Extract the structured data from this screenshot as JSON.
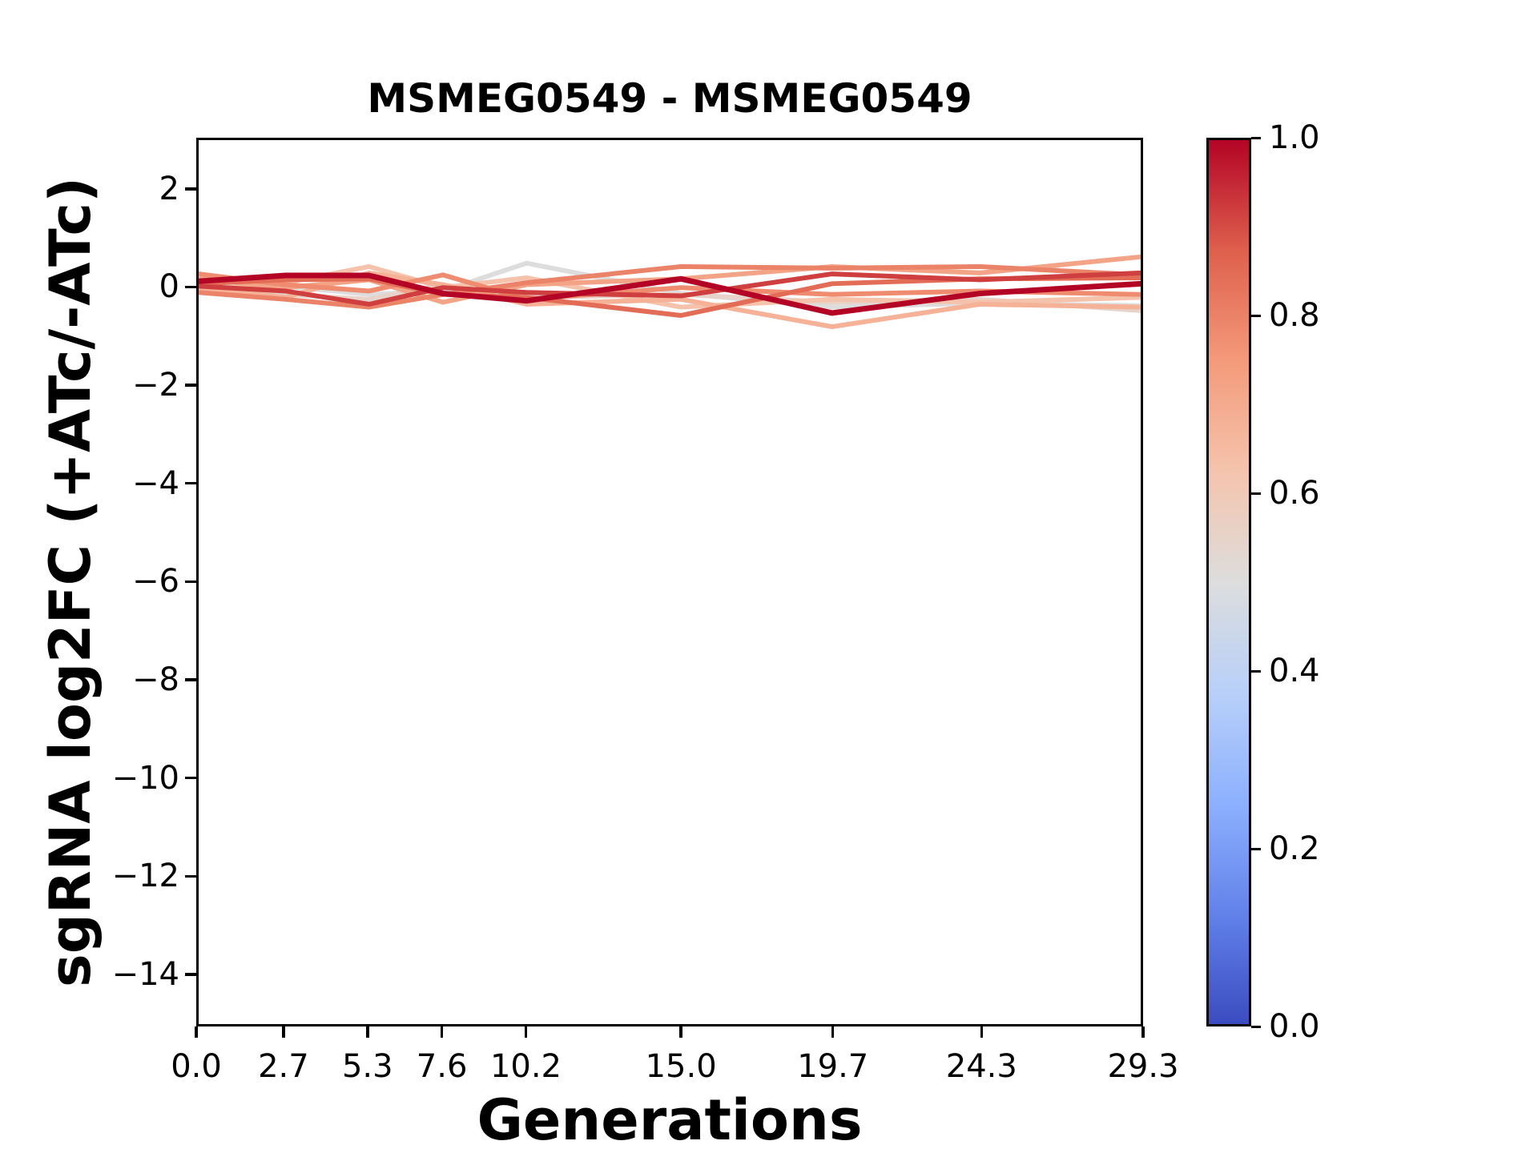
{
  "figure": {
    "background": "#ffffff"
  },
  "chart_data": {
    "type": "line",
    "title": "MSMEG0549 - MSMEG0549",
    "xlabel": "Generations",
    "ylabel": "sgRNA log2FC (+ATc/-ATc)",
    "x": [
      0.0,
      2.7,
      5.3,
      7.6,
      10.2,
      15.0,
      19.7,
      24.3,
      29.3
    ],
    "xtick_labels": [
      "0.0",
      "2.7",
      "5.3",
      "7.6",
      "10.2",
      "15.0",
      "19.7",
      "24.3",
      "29.3"
    ],
    "ytick_values": [
      2,
      0,
      -2,
      -4,
      -6,
      -8,
      -10,
      -12,
      -14
    ],
    "ytick_labels": [
      "2",
      "0",
      "−2",
      "−4",
      "−6",
      "−8",
      "−10",
      "−12",
      "−14"
    ],
    "xlim": [
      0.0,
      29.3
    ],
    "ylim": [
      -15.06,
      3.04
    ],
    "grid": false,
    "legend": "none",
    "colormap": "coolwarm",
    "series": [
      {
        "color_value": 0.5,
        "color": "#dddddd",
        "stroke_width": 6,
        "values": [
          0.0,
          0.05,
          -0.12,
          -0.05,
          0.52,
          -0.1,
          -0.38,
          -0.3,
          -0.35
        ]
      },
      {
        "color_value": 0.55,
        "color": "#e7d3ca",
        "stroke_width": 6,
        "values": [
          0.12,
          -0.12,
          -0.22,
          0.08,
          -0.18,
          -0.12,
          -0.28,
          -0.22,
          -0.45
        ]
      },
      {
        "color_value": 0.63,
        "color": "#f5c2ab",
        "stroke_width": 6,
        "values": [
          -0.05,
          0.12,
          0.45,
          0.02,
          0.22,
          -0.38,
          -0.22,
          -0.28,
          -0.18
        ]
      },
      {
        "color_value": 0.68,
        "color": "#f5b297",
        "stroke_width": 6,
        "values": [
          0.02,
          -0.18,
          0.32,
          0.08,
          -0.32,
          -0.22,
          -0.78,
          -0.32,
          -0.38
        ]
      },
      {
        "color_value": 0.72,
        "color": "#f4a486",
        "stroke_width": 6,
        "values": [
          0.2,
          0.02,
          0.18,
          -0.28,
          0.08,
          0.2,
          0.45,
          0.32,
          0.65
        ]
      },
      {
        "color_value": 0.78,
        "color": "#ef8c6f",
        "stroke_width": 6,
        "values": [
          0.3,
          0.08,
          -0.05,
          0.28,
          -0.22,
          0.02,
          -0.12,
          -0.05,
          -0.12
        ]
      },
      {
        "color_value": 0.8,
        "color": "#eb8368",
        "stroke_width": 6,
        "values": [
          -0.08,
          -0.22,
          -0.38,
          -0.12,
          0.12,
          0.45,
          0.42,
          0.45,
          0.28
        ]
      },
      {
        "color_value": 0.85,
        "color": "#e26c56",
        "stroke_width": 6,
        "values": [
          0.1,
          0.18,
          0.2,
          -0.12,
          -0.18,
          -0.55,
          0.1,
          0.2,
          0.22
        ]
      },
      {
        "color_value": 0.92,
        "color": "#cf3f3f",
        "stroke_width": 6,
        "values": [
          0.05,
          -0.05,
          -0.32,
          0.02,
          -0.08,
          -0.15,
          0.3,
          0.18,
          0.32
        ]
      },
      {
        "color_value": 1.0,
        "color": "#b40426",
        "stroke_width": 7,
        "values": [
          0.15,
          0.27,
          0.27,
          -0.1,
          -0.25,
          0.2,
          -0.5,
          -0.1,
          0.1
        ]
      }
    ],
    "colorbar": {
      "tick_positions": [
        1.0,
        0.8,
        0.6,
        0.4,
        0.2,
        0.0
      ],
      "tick_labels": [
        "1.0",
        "0.8",
        "0.6",
        "0.4",
        "0.2",
        "0.0"
      ],
      "gradient_stops": [
        {
          "t": 1.0,
          "color": "#b40426"
        },
        {
          "t": 0.875,
          "color": "#de604d"
        },
        {
          "t": 0.75,
          "color": "#f49a7a"
        },
        {
          "t": 0.625,
          "color": "#f5c4ad"
        },
        {
          "t": 0.5,
          "color": "#dddddd"
        },
        {
          "t": 0.375,
          "color": "#b8d0f9"
        },
        {
          "t": 0.25,
          "color": "#8db0fe"
        },
        {
          "t": 0.125,
          "color": "#6282ea"
        },
        {
          "t": 0.0,
          "color": "#3b4cc0"
        }
      ]
    }
  }
}
